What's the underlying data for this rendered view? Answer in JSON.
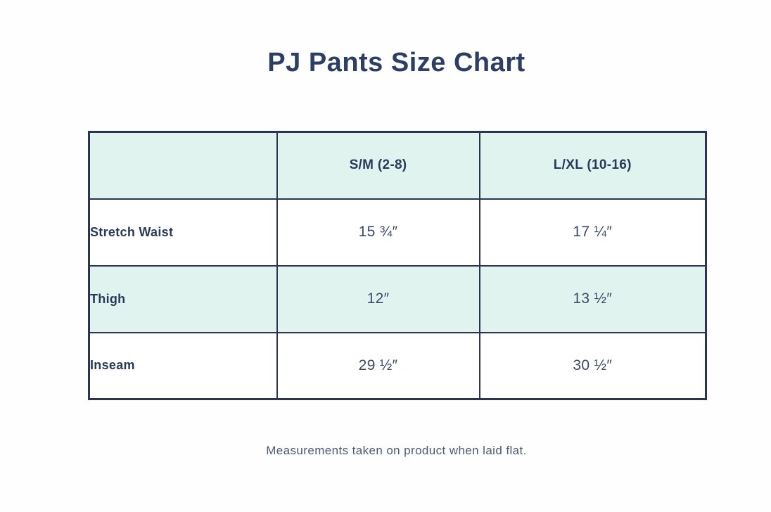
{
  "page": {
    "title": "PJ Pants Size Chart",
    "footnote": "Measurements taken on product when laid flat."
  },
  "colors": {
    "title_text": "#2c3e63",
    "table_border": "#2b3552",
    "row_highlight_mint": "#e1f3ef",
    "row_plain": "#ffffff",
    "value_text": "#3c4a66",
    "note_text": "#4e5a73",
    "background": "#fefefe"
  },
  "chart_data": {
    "type": "table",
    "title": "PJ Pants Size Chart",
    "columns": [
      "",
      "S/M (2-8)",
      "L/XL (10-16)"
    ],
    "rows": [
      {
        "label": "Stretch Waist",
        "values": [
          "15 ¾″",
          "17 ¼″"
        ]
      },
      {
        "label": "Thigh",
        "values": [
          "12″",
          "13 ½″"
        ]
      },
      {
        "label": "Inseam",
        "values": [
          "29 ½″",
          "30 ½″"
        ]
      }
    ],
    "footnote": "Measurements taken on product when laid flat.",
    "layout": {
      "striped_rows": "header and Thigh row highlighted mint",
      "first_column_align": "left",
      "value_align": "center"
    }
  }
}
